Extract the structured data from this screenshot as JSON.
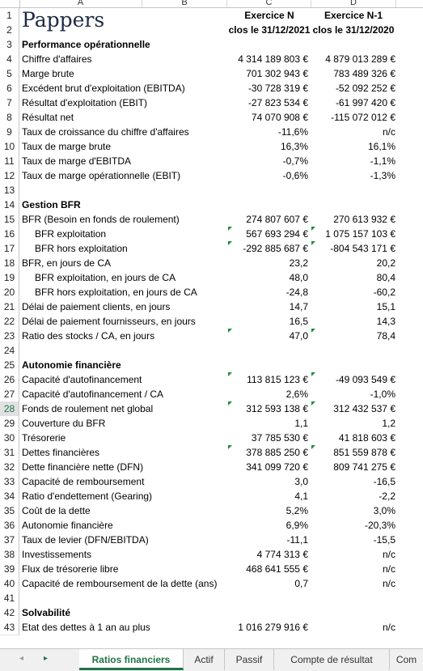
{
  "columns": [
    "A",
    "B",
    "C",
    "D"
  ],
  "logo": "Pappers",
  "header": {
    "c_line1": "Exercice N",
    "c_line2": "clos le 31/12/2021",
    "d_line1": "Exercice N-1",
    "d_line2": "clos le 31/12/2020"
  },
  "rows": [
    {
      "n": "3",
      "label": "Performance opérationnelle",
      "bold": true,
      "c": "",
      "d": ""
    },
    {
      "n": "4",
      "label": "Chiffre d'affaires",
      "c": "4 314 189 803 €",
      "d": "4 879 013 289 €"
    },
    {
      "n": "5",
      "label": "Marge brute",
      "c": "701 302 943 €",
      "d": "783 489 326 €"
    },
    {
      "n": "6",
      "label": "Excédent brut d'exploitation (EBITDA)",
      "c": "-30 728 319 €",
      "d": "-52 092 252 €"
    },
    {
      "n": "7",
      "label": "Résultat d'exploitation (EBIT)",
      "c": "-27 823 534 €",
      "d": "-61 997 420 €"
    },
    {
      "n": "8",
      "label": "Résultat net",
      "c": "74 070 908 €",
      "d": "-115 072 012 €"
    },
    {
      "n": "9",
      "label": "Taux de croissance du chiffre d'affaires",
      "c": "-11,6%",
      "d": "n/c"
    },
    {
      "n": "10",
      "label": "Taux de marge brute",
      "c": "16,3%",
      "d": "16,1%"
    },
    {
      "n": "11",
      "label": "Taux de marge d'EBITDA",
      "c": "-0,7%",
      "d": "-1,1%"
    },
    {
      "n": "12",
      "label": "Taux de marge opérationnelle (EBIT)",
      "c": "-0,6%",
      "d": "-1,3%"
    },
    {
      "n": "13",
      "label": "",
      "c": "",
      "d": ""
    },
    {
      "n": "14",
      "label": "Gestion BFR",
      "bold": true,
      "c": "",
      "d": ""
    },
    {
      "n": "15",
      "label": "BFR (Besoin en fonds de roulement)",
      "c": "274 807 607 €",
      "d": "270 613 932 €"
    },
    {
      "n": "16",
      "label": "BFR exploitation",
      "ind": true,
      "c": "567 693 294 €",
      "d": "1 075 157 103 €",
      "triC": true,
      "triD": true
    },
    {
      "n": "17",
      "label": "BFR hors exploitation",
      "ind": true,
      "c": "-292 885 687 €",
      "d": "-804 543 171 €",
      "triC": true,
      "triD": true
    },
    {
      "n": "18",
      "label": "BFR, en jours de CA",
      "c": "23,2",
      "d": "20,2"
    },
    {
      "n": "19",
      "label": "BFR exploitation, en jours de CA",
      "ind": true,
      "c": "48,0",
      "d": "80,4"
    },
    {
      "n": "20",
      "label": "BFR hors exploitation, en jours de CA",
      "ind": true,
      "c": "-24,8",
      "d": "-60,2"
    },
    {
      "n": "21",
      "label": "Délai de paiement clients, en jours",
      "c": "14,7",
      "d": "15,1"
    },
    {
      "n": "22",
      "label": "Délai de paiement fournisseurs, en jours",
      "c": "16,5",
      "d": "14,3"
    },
    {
      "n": "23",
      "label": "Ratio des stocks / CA, en jours",
      "c": "47,0",
      "d": "78,4",
      "triC": true,
      "triD": true
    },
    {
      "n": "24",
      "label": "",
      "c": "",
      "d": ""
    },
    {
      "n": "25",
      "label": "Autonomie financière",
      "bold": true,
      "c": "",
      "d": ""
    },
    {
      "n": "26",
      "label": "Capacité d'autofinancement",
      "c": "113 815 123 €",
      "d": "-49 093 549 €",
      "triC": true,
      "triD": true
    },
    {
      "n": "27",
      "label": "Capacité d'autofinancement / CA",
      "c": "2,6%",
      "d": "-1,0%"
    },
    {
      "n": "28",
      "label": "Fonds de roulement net global",
      "c": "312 593 138 €",
      "d": "312 432 537 €",
      "triC": true,
      "triD": true,
      "selected": true
    },
    {
      "n": "29",
      "label": "Couverture du BFR",
      "c": "1,1",
      "d": "1,2"
    },
    {
      "n": "30",
      "label": "Trésorerie",
      "c": "37 785 530 €",
      "d": "41 818 603 €"
    },
    {
      "n": "31",
      "label": "Dettes financières",
      "c": "378 885 250 €",
      "d": "851 559 878 €",
      "triC": true,
      "triD": true
    },
    {
      "n": "32",
      "label": "Dette financière nette (DFN)",
      "c": "341 099 720 €",
      "d": "809 741 275 €"
    },
    {
      "n": "33",
      "label": "Capacité de remboursement",
      "c": "3,0",
      "d": "-16,5"
    },
    {
      "n": "34",
      "label": "Ratio d'endettement (Gearing)",
      "c": "4,1",
      "d": "-2,2"
    },
    {
      "n": "35",
      "label": "Coût de la dette",
      "c": "5,2%",
      "d": "3,0%"
    },
    {
      "n": "36",
      "label": "Autonomie financière",
      "c": "6,9%",
      "d": "-20,3%"
    },
    {
      "n": "37",
      "label": "Taux de levier (DFN/EBITDA)",
      "c": "-11,1",
      "d": "-15,5"
    },
    {
      "n": "38",
      "label": "Investissements",
      "c": "4 774 313 €",
      "d": "n/c"
    },
    {
      "n": "39",
      "label": "Flux de trésorerie libre",
      "c": "468 641 555 €",
      "d": "n/c"
    },
    {
      "n": "40",
      "label": "Capacité de remboursement de la dette (ans)",
      "c": "0,7",
      "d": "n/c"
    },
    {
      "n": "41",
      "label": "",
      "c": "",
      "d": ""
    },
    {
      "n": "42",
      "label": "Solvabilité",
      "bold": true,
      "c": "",
      "d": ""
    },
    {
      "n": "43",
      "label": "Etat des dettes à 1 an au plus",
      "c": "1 016 279 916 €",
      "d": "n/c"
    }
  ],
  "tabs": {
    "prev_icon": "◂",
    "next_icon": "▸",
    "items": [
      {
        "label": "Ratios financiers",
        "active": true
      },
      {
        "label": "Actif"
      },
      {
        "label": "Passif"
      },
      {
        "label": "Compte de résultat"
      },
      {
        "label": "Com"
      }
    ]
  },
  "colors": {
    "accent": "#217346",
    "comment_marker": "#1e8c3a"
  }
}
